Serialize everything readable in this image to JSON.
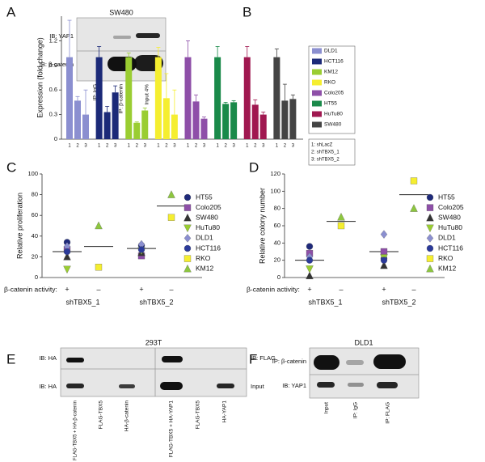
{
  "chart_data": [
    {
      "panel": "B",
      "type": "bar",
      "ylabel": "Expression (fold change)",
      "categories": [
        "1",
        "2",
        "3"
      ],
      "series": [
        {
          "name": "DLD1",
          "color": "#8b8fd0",
          "values": [
            1.0,
            0.47,
            0.3
          ],
          "errors": [
            0.45,
            0.05,
            0.3
          ]
        },
        {
          "name": "HCT116",
          "color": "#1c2a78",
          "values": [
            1.0,
            0.33,
            0.57
          ],
          "errors": [
            0.13,
            0.07,
            0.08
          ]
        },
        {
          "name": "KM12",
          "color": "#9acd32",
          "values": [
            1.0,
            0.2,
            0.35
          ],
          "errors": [
            0.05,
            0.01,
            0.03
          ]
        },
        {
          "name": "RKO",
          "color": "#f5ee30",
          "values": [
            1.0,
            0.5,
            0.3
          ],
          "errors": [
            0.12,
            0.3,
            0.3
          ]
        },
        {
          "name": "Colo205",
          "color": "#8e4fa8",
          "values": [
            1.0,
            0.46,
            0.25
          ],
          "errors": [
            0.2,
            0.08,
            0.02
          ]
        },
        {
          "name": "HT55",
          "color": "#1a8a4a",
          "values": [
            1.0,
            0.43,
            0.45
          ],
          "errors": [
            0.13,
            0.02,
            0.02
          ]
        },
        {
          "name": "HuTu80",
          "color": "#a01850",
          "values": [
            1.0,
            0.42,
            0.3
          ],
          "errors": [
            0.13,
            0.06,
            0.03
          ]
        },
        {
          "name": "SW480",
          "color": "#444444",
          "values": [
            1.0,
            0.47,
            0.49
          ],
          "errors": [
            0.1,
            0.2,
            0.05
          ]
        }
      ],
      "key_labels": [
        "1: shLacZ",
        "2: shTBX5_1",
        "3: shTBX5_2"
      ],
      "ylim": [
        0,
        1.5
      ],
      "yticks": [
        0,
        0.3,
        0.6,
        0.9,
        1.2
      ],
      "legend": "right"
    },
    {
      "panel": "C",
      "type": "strip",
      "ylabel": "Relative proliferation",
      "xlabel": "β-catenin activity:",
      "categories": [
        "+",
        "–",
        "+",
        "–"
      ],
      "groups": [
        "shTBX5_1",
        "shTBX5_2"
      ],
      "series": [
        {
          "name": "HT55",
          "color": "#1f2a7a",
          "marker": "circle",
          "values": [
            34,
            null,
            31,
            null
          ]
        },
        {
          "name": "Colo205",
          "color": "#8e4fa8",
          "marker": "square",
          "values": [
            27,
            null,
            21,
            null
          ]
        },
        {
          "name": "SW480",
          "color": "#333333",
          "marker": "triangle",
          "values": [
            20,
            null,
            24,
            null
          ]
        },
        {
          "name": "HuTu80",
          "color": "#9acd32",
          "marker": "triangle-down",
          "values": [
            8,
            null,
            26,
            null
          ]
        },
        {
          "name": "DLD1",
          "color": "#8b8fd0",
          "marker": "diamond",
          "values": [
            30,
            null,
            32,
            null
          ]
        },
        {
          "name": "HCT116",
          "color": "#2b3a9a",
          "marker": "circle",
          "values": [
            25,
            null,
            27,
            null
          ]
        },
        {
          "name": "RKO",
          "color": "#f5ee30",
          "marker": "square",
          "values": [
            null,
            10,
            null,
            58
          ]
        },
        {
          "name": "KM12",
          "color": "#8dc63f",
          "marker": "triangle",
          "values": [
            null,
            50,
            null,
            80
          ]
        }
      ],
      "means": [
        25,
        30,
        28,
        69
      ],
      "ylim": [
        0,
        100
      ],
      "yticks": [
        0,
        20,
        40,
        60,
        80,
        100
      ],
      "legend": "right"
    },
    {
      "panel": "D",
      "type": "strip",
      "ylabel": "Relative colony number",
      "xlabel": "β-catenin activity:",
      "categories": [
        "+",
        "–",
        "+",
        "–"
      ],
      "groups": [
        "shTBX5_1",
        "shTBX5_2"
      ],
      "series": [
        {
          "name": "HT55",
          "color": "#1f2a7a",
          "marker": "circle",
          "values": [
            36,
            null,
            22,
            null
          ]
        },
        {
          "name": "Colo205",
          "color": "#8e4fa8",
          "marker": "square",
          "values": [
            28,
            null,
            30,
            null
          ]
        },
        {
          "name": "SW480",
          "color": "#333333",
          "marker": "triangle",
          "values": [
            2,
            null,
            14,
            null
          ]
        },
        {
          "name": "HuTu80",
          "color": "#9acd32",
          "marker": "triangle-down",
          "values": [
            10,
            null,
            23,
            null
          ]
        },
        {
          "name": "DLD1",
          "color": "#8b8fd0",
          "marker": "diamond",
          "values": [
            24,
            null,
            50,
            null
          ]
        },
        {
          "name": "HCT116",
          "color": "#2b3a9a",
          "marker": "circle",
          "values": [
            20,
            null,
            20,
            null
          ]
        },
        {
          "name": "RKO",
          "color": "#f5ee30",
          "marker": "square",
          "values": [
            null,
            60,
            null,
            112
          ]
        },
        {
          "name": "KM12",
          "color": "#8dc63f",
          "marker": "triangle",
          "values": [
            null,
            70,
            null,
            80
          ]
        }
      ],
      "means": [
        20,
        65,
        30,
        96
      ],
      "ylim": [
        0,
        120
      ],
      "yticks": [
        0,
        20,
        40,
        60,
        80,
        100,
        120
      ],
      "legend": "right"
    }
  ],
  "blots": [
    {
      "panel": "A",
      "title": "SW480",
      "rows": [
        "IB: YAP1",
        "IB: β-catenin"
      ],
      "lanes": [
        "IP: IgG",
        "IP: β-catenin",
        "Input 4%"
      ]
    },
    {
      "panel": "E",
      "title": "293T",
      "rows": [
        "IB: HA",
        "IB: HA"
      ],
      "row_notes": [
        "IP: FLAG",
        "Input"
      ],
      "lanes": [
        "FLAG-TBX5 + HA-β-catenin",
        "FLAG-TBX5",
        "HA-β-catenin",
        "FLAG-TBX5 + HA-YAP1",
        "FLAG-TBX5",
        "HA-YAP1"
      ]
    },
    {
      "panel": "F",
      "title": "DLD1",
      "rows": [
        "IP: β-catenin",
        "IB: YAP1"
      ],
      "lanes": [
        "Input",
        "IP: IgG",
        "IP: FLAG"
      ]
    }
  ]
}
